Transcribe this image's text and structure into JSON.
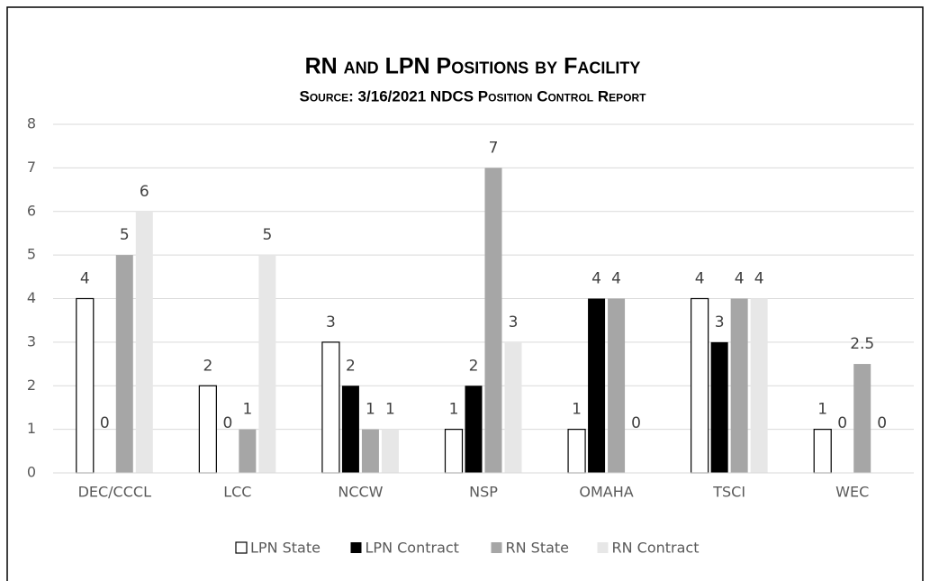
{
  "chart_data": {
    "type": "bar",
    "title": "RN and LPN Positions by Facility",
    "subtitle": "Source: 3/16/2021 NDCS Position Control Report",
    "categories": [
      "DEC/CCCL",
      "LCC",
      "NCCW",
      "NSP",
      "OMAHA",
      "TSCI",
      "WEC"
    ],
    "series": [
      {
        "name": "LPN State",
        "color": "#ffffff",
        "values": [
          4,
          2,
          3,
          1,
          1,
          4,
          1
        ]
      },
      {
        "name": "LPN Contract",
        "color": "#000000",
        "values": [
          0,
          0,
          2,
          2,
          4,
          3,
          0
        ]
      },
      {
        "name": "RN State",
        "color": "#a6a6a6",
        "values": [
          5,
          1,
          1,
          7,
          4,
          4,
          2.5
        ]
      },
      {
        "name": "RN Contract",
        "color": "#e7e7e7",
        "values": [
          6,
          5,
          1,
          3,
          0,
          4,
          0
        ]
      }
    ],
    "ylim": [
      0,
      8
    ],
    "yticks": [
      0,
      1,
      2,
      3,
      4,
      5,
      6,
      7,
      8
    ],
    "grid": true,
    "legend": "bottom"
  }
}
